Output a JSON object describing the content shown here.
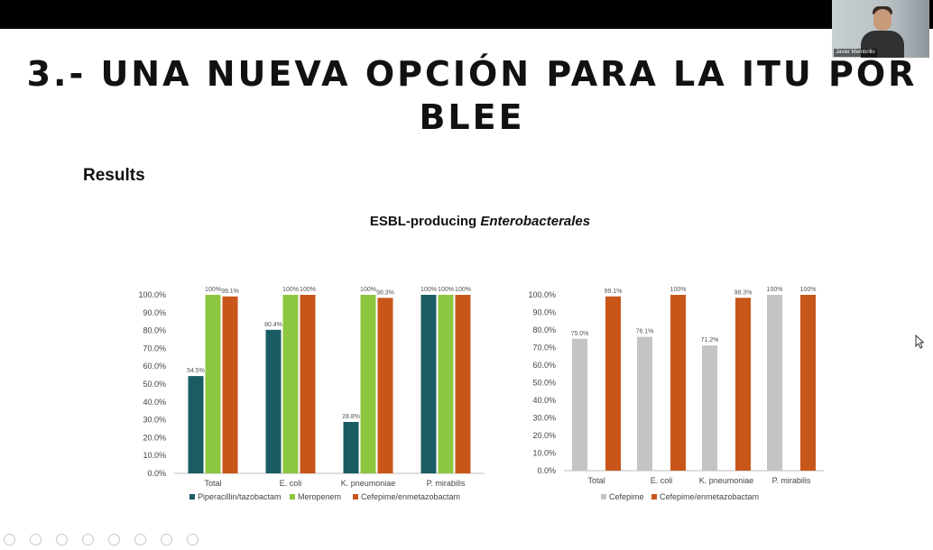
{
  "slide": {
    "title": "3.- UNA NUEVA OPCIÓN PARA LA ITU POR BLEE",
    "section": "Results",
    "subtitle_prefix": "ESBL-producing ",
    "subtitle_italic": "Enterobacterales"
  },
  "webcam": {
    "name": "Javier Membrillo"
  },
  "colors": {
    "teal": "#1a5c63",
    "green": "#8dc63f",
    "orange": "#c8561a",
    "gray": "#c4c4c4"
  },
  "chart_data": [
    {
      "type": "bar",
      "categories": [
        "Total",
        "E. coli",
        "K. pneumoniae",
        "P. mirabilis"
      ],
      "ylim": [
        0,
        100
      ],
      "yticks": [
        "0.0%",
        "10.0%",
        "20.0%",
        "30.0%",
        "40.0%",
        "50.0%",
        "60.0%",
        "70.0%",
        "80.0%",
        "90.0%",
        "100.0%"
      ],
      "legend_position": "bottom",
      "series": [
        {
          "name": "Piperacillin/tazobactam",
          "color": "#1a5c63",
          "values": [
            54.5,
            80.4,
            28.8,
            100
          ],
          "labels": [
            "54.5%",
            "80.4%",
            "28.8%",
            "100%"
          ]
        },
        {
          "name": "Meropenem",
          "color": "#8dc63f",
          "values": [
            100,
            100,
            100,
            100
          ],
          "labels": [
            "100%",
            "100%",
            "100%",
            "100%"
          ]
        },
        {
          "name": "Cefepime/enmetazobactam",
          "color": "#c8561a",
          "values": [
            99.1,
            100,
            98.3,
            100
          ],
          "labels": [
            "99.1%",
            "100%",
            "98.3%",
            "100%"
          ]
        }
      ]
    },
    {
      "type": "bar",
      "categories": [
        "Total",
        "E. coli",
        "K. pneumoniae",
        "P. mirabilis"
      ],
      "ylim": [
        0,
        100
      ],
      "yticks": [
        "0.0%",
        "10.0%",
        "20.0%",
        "30.0%",
        "40.0%",
        "50.0%",
        "60.0%",
        "70.0%",
        "80.0%",
        "90.0%",
        "100.0%"
      ],
      "legend_position": "bottom",
      "series": [
        {
          "name": "Cefepime",
          "color": "#c4c4c4",
          "values": [
            75.0,
            76.1,
            71.2,
            100
          ],
          "labels": [
            "75.0%",
            "76.1%",
            "71.2%",
            "100%"
          ]
        },
        {
          "name": "Cefepime/enmetazobactam",
          "color": "#c8561a",
          "values": [
            99.1,
            100,
            98.3,
            100
          ],
          "labels": [
            "99.1%",
            "100%",
            "98.3%",
            "100%"
          ]
        }
      ]
    }
  ]
}
